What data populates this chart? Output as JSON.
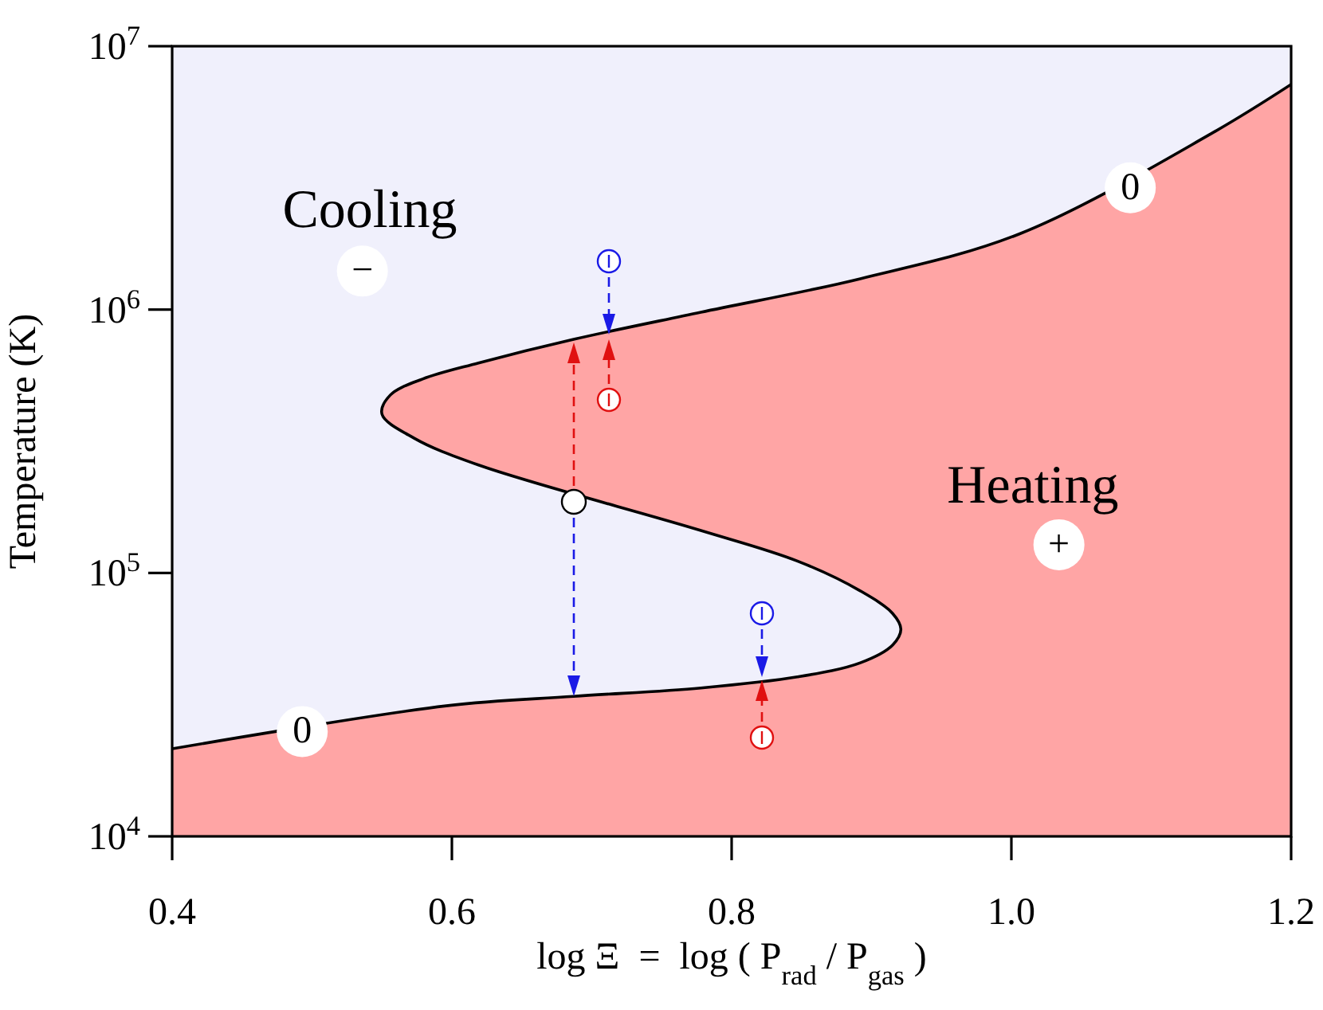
{
  "chart_data": {
    "type": "area",
    "xlabel": "log Ξ  =  log ( P$_{rad}$ / P$_{gas}$ )",
    "ylabel": "Temperature (K)",
    "log": "y",
    "xlim": [
      0.4,
      1.2
    ],
    "xticks": [
      0.4,
      0.6,
      0.8,
      {
        "value": 1,
        "label": "1.0"
      },
      1.2
    ],
    "ylim": [
      10000,
      10000000
    ],
    "yticks": [
      {
        "value": 10000,
        "label": "10$^{4}$"
      },
      {
        "value": 100000,
        "label": "10$^{5}$"
      },
      {
        "value": 1000000,
        "label": "10$^{6}$"
      },
      {
        "value": 10000000,
        "label": "10$^{7}$"
      }
    ],
    "series": [
      {
        "color": "#ffa5a5",
        "x": [
          0.4,
          0.596,
          0.687,
          0.778,
          0.847,
          0.892,
          0.915,
          0.921,
          0.915,
          0.892,
          0.847,
          0.778,
          0.619,
          0.573,
          0.55,
          0.556,
          0.579,
          0.619,
          0.687,
          0.778,
          0.892,
          1.006,
          1.143,
          1.2
        ],
        "values": [
          21500,
          31300,
          34000,
          36600,
          40300,
          45600,
          53200,
          61100,
          70300,
          85500,
          111000,
          145000,
          257000,
          325000,
          401000,
          474000,
          545000,
          627000,
          771000,
          977000,
          1310000,
          1940000,
          4660000,
          7160000
        ]
      }
    ],
    "annotations": [
      "Cooling",
      "Heating",
      {
        "text": "−",
        "x": 0.536,
        "y": 1400000
      },
      {
        "text": "+",
        "x": 1.034,
        "y": 128000
      },
      {
        "text": "0",
        "x": 1.085,
        "y": 2900000
      },
      {
        "text": "0",
        "x": 0.493,
        "y": 25000
      }
    ]
  }
}
